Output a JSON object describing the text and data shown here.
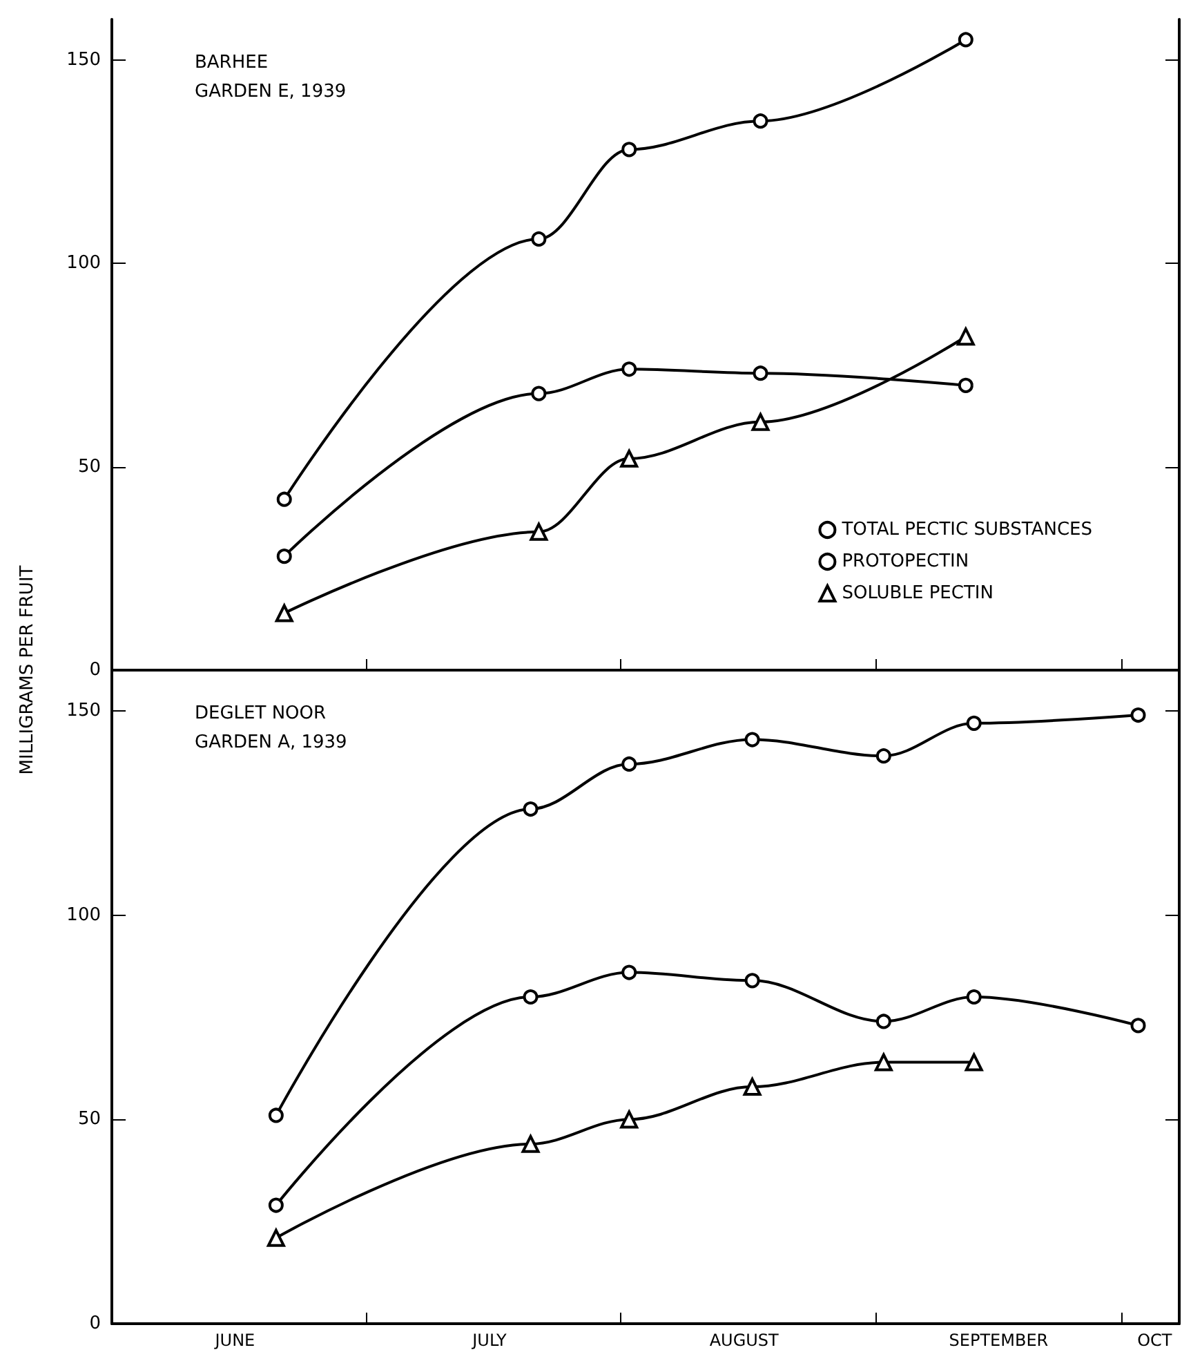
{
  "chart_data": [
    {
      "type": "line",
      "title": "BARHEE",
      "subtitle": "GARDEN E, 1939",
      "ylabel": "MILLIGRAMS PER FRUIT",
      "x": [
        "--06-21",
        "--07-22",
        "--08-02",
        "--08-18",
        "--09-12"
      ],
      "series": [
        {
          "name": "TOTAL PECTIC SUBSTANCES",
          "color": "#000000",
          "marker": "circle",
          "values": [
            42,
            106,
            128,
            135,
            155
          ]
        },
        {
          "name": "PROTOPECTIN",
          "color": "#000000",
          "marker": "circle",
          "values": [
            28,
            68,
            74,
            73,
            70
          ]
        },
        {
          "name": "SOLUBLE PECTIN",
          "color": "#000000",
          "marker": "triangle",
          "values": [
            14,
            34,
            52,
            61,
            82
          ]
        }
      ],
      "xlim": [
        "--05-31",
        "--10-08"
      ],
      "xticks": [
        {
          "value": "--06-15",
          "label": "JUNE"
        },
        {
          "value": "--07-01",
          "label": null
        },
        {
          "value": "--07-16",
          "label": "JULY"
        },
        {
          "value": "--08-01",
          "label": null
        },
        {
          "value": "--08-16",
          "label": "AUGUST"
        },
        {
          "value": "--09-01",
          "label": null
        },
        {
          "value": "--09-16",
          "label": "SEPTEMBER"
        },
        {
          "value": "--10-01",
          "label": null
        },
        {
          "value": "--10-05",
          "label": "OCT"
        }
      ],
      "ylim": [
        0,
        160
      ],
      "yticks": [
        0,
        50,
        100,
        150
      ],
      "tick_labels": "y",
      "legend": "bottom right",
      "grid": false,
      "line_style": "solid"
    },
    {
      "type": "line",
      "title": "DEGLET NOOR",
      "subtitle": "GARDEN A, 1939",
      "x": [
        "--06-20",
        "--07-21",
        "--08-02",
        "--08-17",
        "--09-02",
        "--09-13",
        "--10-03"
      ],
      "series": [
        {
          "color": "#000000",
          "marker": "circle",
          "values": [
            51,
            126,
            137,
            143,
            139,
            147,
            149
          ]
        },
        {
          "color": "#000000",
          "marker": "triangle",
          "values": [
            21,
            44,
            50,
            58,
            64,
            64,
            null
          ]
        },
        {
          "color": "#000000",
          "marker": "circle",
          "values": [
            29,
            80,
            86,
            84,
            74,
            80,
            73
          ]
        }
      ],
      "xlim": [
        "--05-31",
        "--10-08"
      ],
      "xticks": [
        {
          "value": "--06-15",
          "label": "JUNE"
        },
        {
          "value": "--07-01",
          "label": null
        },
        {
          "value": "--07-16",
          "label": "JULY"
        },
        {
          "value": "--08-01",
          "label": null
        },
        {
          "value": "--08-16",
          "label": "AUGUST"
        },
        {
          "value": "--09-01",
          "label": null
        },
        {
          "value": "--09-16",
          "label": "SEPTEMBER"
        },
        {
          "value": "--10-01",
          "label": null
        },
        {
          "value": "--10-05",
          "label": "OCT"
        }
      ],
      "ylim": [
        0,
        160
      ],
      "yticks": [
        0,
        50,
        100,
        150
      ],
      "legend": false,
      "grid": false,
      "line_style": "solid"
    }
  ]
}
